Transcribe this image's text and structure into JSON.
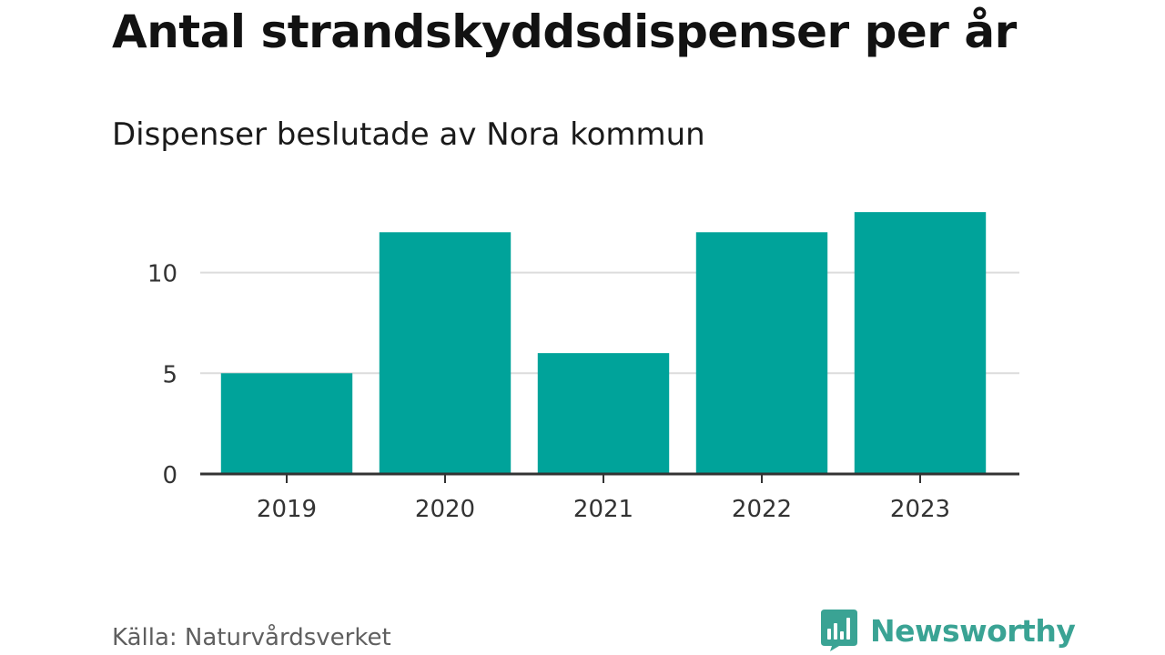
{
  "chart_data": {
    "type": "bar",
    "title": "Antal strandskyddsdispenser per år",
    "subtitle": "Dispenser beslutade av Nora kommun",
    "categories": [
      "2019",
      "2020",
      "2021",
      "2022",
      "2023"
    ],
    "values": [
      5,
      12,
      6,
      12,
      13
    ],
    "xlabel": "",
    "ylabel": "",
    "ylim": [
      0,
      14
    ],
    "yticks": [
      0,
      5,
      10
    ],
    "grid": true,
    "bar_color": "#00a39a",
    "legend": "none"
  },
  "footer": {
    "source": "Källa: Naturvårdsverket",
    "brand": "Newsworthy",
    "brand_icon": "newsworthy-logo-icon",
    "brand_color": "#3aa394"
  }
}
